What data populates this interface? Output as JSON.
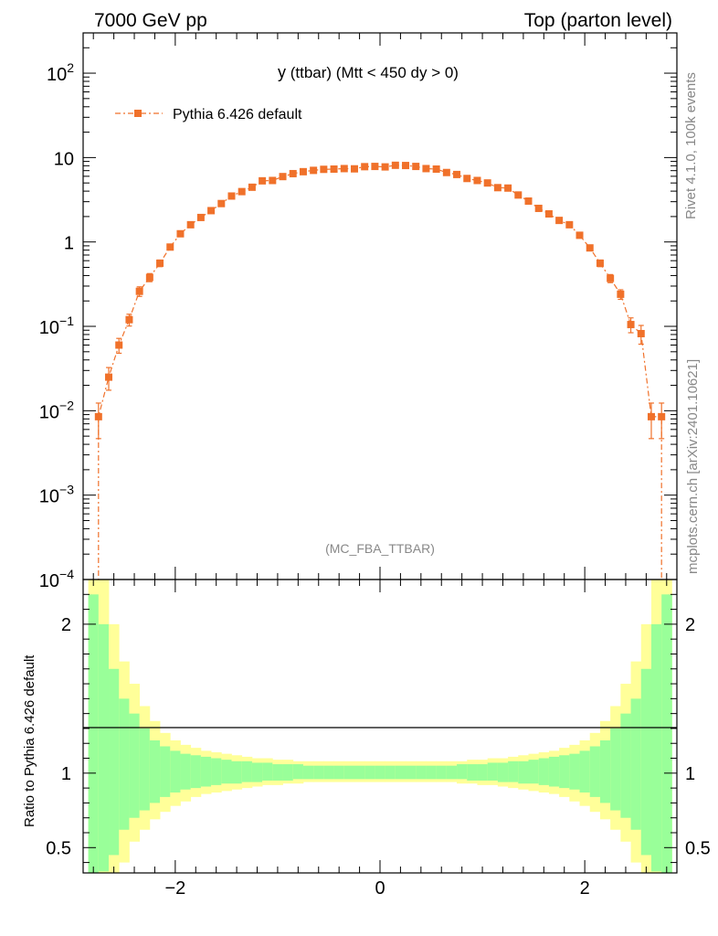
{
  "header": {
    "left": "7000 GeV pp",
    "right": "Top (parton level)"
  },
  "side": {
    "rivet": "Rivet 4.1.0,  100k events",
    "mcplots": "mcplots.cern.ch [arXiv:2401.10621]"
  },
  "chart_data": {
    "type": "line",
    "title_main": "y",
    "title_rest": " (ttbar) (Mtt < 450 dy > 0)",
    "analysis": "(MC_FBA_TTBAR)",
    "xlabel": "",
    "ylabel_ratio": "Ratio to Pythia 6.426 default",
    "xlim": [
      -2.9,
      2.9
    ],
    "ylim_log": [
      0.0001,
      300
    ],
    "ratio_ylim": [
      0.33,
      2.3
    ],
    "x_ticks": [
      -2,
      0,
      2
    ],
    "x_tick_labels": [
      "−2",
      "0",
      "2"
    ],
    "ratio_ticks": [
      0.5,
      1,
      2
    ],
    "ratio_tick_labels": [
      "0.5",
      "1",
      "2"
    ],
    "y_tick_labels": [
      {
        "value": 0.0001,
        "base": "10",
        "exp": "−4"
      },
      {
        "value": 0.001,
        "base": "10",
        "exp": "−3"
      },
      {
        "value": 0.01,
        "base": "10",
        "exp": "−2"
      },
      {
        "value": 0.1,
        "base": "10",
        "exp": "−1"
      },
      {
        "value": 1,
        "base": "1",
        "exp": ""
      },
      {
        "value": 10,
        "base": "10",
        "exp": ""
      },
      {
        "value": 100,
        "base": "10",
        "exp": "2"
      }
    ],
    "legend": "Pythia 6.426 default",
    "color": "#f0712a",
    "series": [
      {
        "name": "Pythia 6.426 default",
        "x": [
          -2.75,
          -2.65,
          -2.55,
          -2.45,
          -2.35,
          -2.25,
          -2.15,
          -2.05,
          -1.95,
          -1.85,
          -1.75,
          -1.65,
          -1.55,
          -1.45,
          -1.35,
          -1.25,
          -1.15,
          -1.05,
          -0.95,
          -0.85,
          -0.75,
          -0.65,
          -0.55,
          -0.45,
          -0.35,
          -0.25,
          -0.15,
          -0.05,
          0.05,
          0.15,
          0.25,
          0.35,
          0.45,
          0.55,
          0.65,
          0.75,
          0.85,
          0.95,
          1.05,
          1.15,
          1.25,
          1.35,
          1.45,
          1.55,
          1.65,
          1.75,
          1.85,
          1.95,
          2.05,
          2.15,
          2.25,
          2.35,
          2.45,
          2.55,
          2.65,
          2.75
        ],
        "values": [
          0.0085,
          0.025,
          0.06,
          0.12,
          0.26,
          0.38,
          0.56,
          0.87,
          1.25,
          1.6,
          1.95,
          2.35,
          2.85,
          3.5,
          3.95,
          4.45,
          5.3,
          5.35,
          5.95,
          6.45,
          6.8,
          7.05,
          7.25,
          7.3,
          7.4,
          7.35,
          7.8,
          7.85,
          7.75,
          8.1,
          8.05,
          7.85,
          7.4,
          7.3,
          6.65,
          6.3,
          5.65,
          5.35,
          5.0,
          4.4,
          4.35,
          3.6,
          3.05,
          2.5,
          2.15,
          1.8,
          1.6,
          1.2,
          0.85,
          0.56,
          0.37,
          0.24,
          0.105,
          0.082,
          0.0085,
          0.0085
        ],
        "errors_rel": [
          0.45,
          0.3,
          0.2,
          0.16,
          0.13,
          0.11,
          0.09,
          0.07,
          0.06,
          0.05,
          0.045,
          0.04,
          0.035,
          0.03,
          0.03,
          0.03,
          0.025,
          0.025,
          0.02,
          0.02,
          0.02,
          0.02,
          0.02,
          0.02,
          0.02,
          0.02,
          0.02,
          0.02,
          0.02,
          0.02,
          0.02,
          0.02,
          0.02,
          0.02,
          0.02,
          0.02,
          0.02,
          0.02,
          0.025,
          0.025,
          0.03,
          0.03,
          0.03,
          0.035,
          0.04,
          0.045,
          0.05,
          0.06,
          0.07,
          0.09,
          0.11,
          0.13,
          0.2,
          0.25,
          0.45,
          0.45
        ]
      }
    ],
    "ratio_bands": {
      "x_edges": [
        -2.85,
        -2.75,
        -2.65,
        -2.55,
        -2.45,
        -2.35,
        -2.25,
        -2.15,
        -2.05,
        -1.95,
        -1.85,
        -1.75,
        -1.65,
        -1.55,
        -1.45,
        -1.35,
        -1.25,
        -1.15,
        -1.05,
        -0.95,
        -0.85,
        -0.75,
        -0.65,
        -0.55,
        -0.45,
        -0.35,
        -0.25,
        -0.15,
        -0.05,
        0.05,
        0.15,
        0.25,
        0.35,
        0.45,
        0.55,
        0.65,
        0.75,
        0.85,
        0.95,
        1.05,
        1.15,
        1.25,
        1.35,
        1.45,
        1.55,
        1.65,
        1.75,
        1.85,
        1.95,
        2.05,
        2.15,
        2.25,
        2.35,
        2.45,
        2.55,
        2.65,
        2.75,
        2.85
      ],
      "green_up": [
        2.2,
        2.0,
        1.7,
        1.5,
        1.4,
        1.3,
        1.22,
        1.18,
        1.15,
        1.13,
        1.12,
        1.11,
        1.1,
        1.09,
        1.08,
        1.08,
        1.07,
        1.07,
        1.06,
        1.06,
        1.06,
        1.05,
        1.05,
        1.05,
        1.05,
        1.05,
        1.05,
        1.05,
        1.05,
        1.05,
        1.05,
        1.05,
        1.05,
        1.05,
        1.05,
        1.05,
        1.06,
        1.06,
        1.06,
        1.07,
        1.07,
        1.08,
        1.08,
        1.09,
        1.1,
        1.11,
        1.12,
        1.13,
        1.15,
        1.18,
        1.22,
        1.3,
        1.4,
        1.5,
        1.7,
        2.0,
        2.2
      ],
      "green_lo": [
        0.33,
        0.34,
        0.45,
        0.62,
        0.7,
        0.75,
        0.8,
        0.84,
        0.87,
        0.89,
        0.9,
        0.91,
        0.92,
        0.93,
        0.93,
        0.94,
        0.94,
        0.95,
        0.95,
        0.95,
        0.96,
        0.96,
        0.96,
        0.96,
        0.96,
        0.96,
        0.96,
        0.96,
        0.96,
        0.96,
        0.96,
        0.96,
        0.96,
        0.96,
        0.96,
        0.96,
        0.96,
        0.95,
        0.95,
        0.95,
        0.94,
        0.94,
        0.93,
        0.93,
        0.92,
        0.91,
        0.9,
        0.89,
        0.87,
        0.84,
        0.8,
        0.75,
        0.7,
        0.62,
        0.45,
        0.34,
        0.33
      ],
      "yellow_up": [
        2.3,
        2.3,
        2.0,
        1.75,
        1.6,
        1.45,
        1.35,
        1.27,
        1.22,
        1.19,
        1.17,
        1.15,
        1.14,
        1.13,
        1.12,
        1.11,
        1.1,
        1.1,
        1.09,
        1.09,
        1.08,
        1.08,
        1.08,
        1.08,
        1.08,
        1.08,
        1.08,
        1.08,
        1.08,
        1.08,
        1.08,
        1.08,
        1.08,
        1.08,
        1.08,
        1.08,
        1.08,
        1.09,
        1.09,
        1.1,
        1.1,
        1.11,
        1.12,
        1.13,
        1.14,
        1.15,
        1.17,
        1.19,
        1.22,
        1.27,
        1.35,
        1.45,
        1.6,
        1.75,
        2.0,
        2.3,
        2.3
      ],
      "yellow_lo": [
        0.33,
        0.33,
        0.33,
        0.4,
        0.54,
        0.62,
        0.69,
        0.74,
        0.78,
        0.81,
        0.84,
        0.86,
        0.87,
        0.88,
        0.89,
        0.9,
        0.91,
        0.92,
        0.92,
        0.93,
        0.93,
        0.94,
        0.94,
        0.94,
        0.94,
        0.94,
        0.94,
        0.94,
        0.94,
        0.94,
        0.94,
        0.94,
        0.94,
        0.94,
        0.94,
        0.94,
        0.93,
        0.93,
        0.92,
        0.92,
        0.91,
        0.9,
        0.89,
        0.88,
        0.87,
        0.86,
        0.84,
        0.81,
        0.78,
        0.74,
        0.69,
        0.62,
        0.54,
        0.4,
        0.33,
        0.33,
        0.33
      ]
    }
  }
}
